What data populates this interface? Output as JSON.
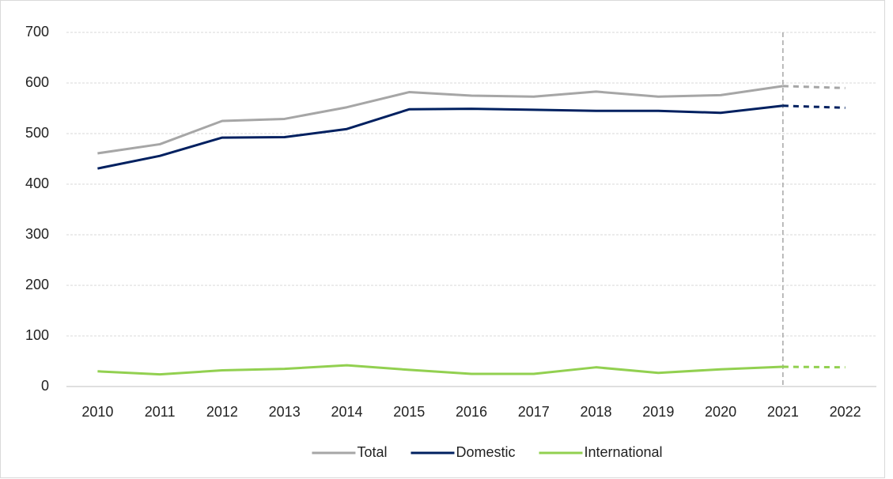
{
  "chart_data": {
    "type": "line",
    "categories": [
      "2010",
      "2011",
      "2012",
      "2013",
      "2014",
      "2015",
      "2016",
      "2017",
      "2018",
      "2019",
      "2020",
      "2021",
      "2022"
    ],
    "series": [
      {
        "name": "Total",
        "color": "#a6a6a6",
        "values": [
          461,
          479,
          525,
          529,
          552,
          582,
          575,
          573,
          583,
          573,
          576,
          594,
          590
        ]
      },
      {
        "name": "Domestic",
        "color": "#002060",
        "values": [
          431,
          456,
          492,
          493,
          509,
          548,
          549,
          547,
          545,
          545,
          541,
          555,
          551
        ]
      },
      {
        "name": "International",
        "color": "#92d050",
        "values": [
          30,
          24,
          32,
          35,
          42,
          33,
          25,
          25,
          38,
          27,
          34,
          39,
          38
        ]
      }
    ],
    "ylim": [
      0,
      700
    ],
    "yticks": [
      0,
      100,
      200,
      300,
      400,
      500,
      600,
      700
    ],
    "grid": true,
    "forecast_from": "2021",
    "legend": "bottom"
  }
}
